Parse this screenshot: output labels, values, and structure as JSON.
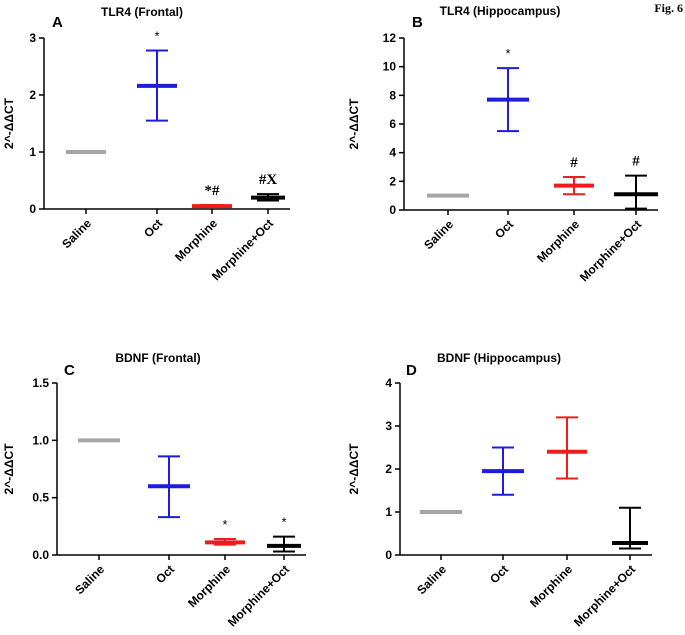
{
  "figure_label": "Fig. 6",
  "chart_data": [
    {
      "type": "scatter",
      "panel": "A",
      "title": "TLR4 (Frontal)",
      "ylabel": "2^-ΔΔCT",
      "xlabel": "",
      "ylim": [
        0,
        3
      ],
      "yticks": [
        "0",
        "1",
        "2",
        "3"
      ],
      "categories": [
        "Saline",
        "Oct",
        "Morphine",
        "Morphine+Oct"
      ],
      "colors": [
        "#a6a6a6",
        "#1c1cdc",
        "#ee1c1c",
        "#000000"
      ],
      "means": [
        1.0,
        2.16,
        0.05,
        0.2
      ],
      "upper": [
        1.0,
        2.78,
        0.07,
        0.26
      ],
      "lower": [
        1.0,
        1.55,
        0.04,
        0.15
      ],
      "annotations": [
        "",
        "*",
        "*#",
        "#X"
      ]
    },
    {
      "type": "scatter",
      "panel": "B",
      "title": "TLR4 (Hippocampus)",
      "ylabel": "2^-ΔΔCT",
      "xlabel": "",
      "ylim": [
        0,
        12
      ],
      "yticks": [
        "0",
        "2",
        "4",
        "6",
        "8",
        "10",
        "12"
      ],
      "categories": [
        "Saline",
        "Oct",
        "Morphine",
        "Morphine+Oct"
      ],
      "colors": [
        "#a6a6a6",
        "#1c1cdc",
        "#ee1c1c",
        "#000000"
      ],
      "means": [
        1.0,
        7.7,
        1.7,
        1.1
      ],
      "upper": [
        1.0,
        9.9,
        2.3,
        2.4
      ],
      "lower": [
        1.0,
        5.5,
        1.1,
        0.1
      ],
      "annotations": [
        "",
        "*",
        "#",
        "#"
      ]
    },
    {
      "type": "scatter",
      "panel": "C",
      "title": "BDNF (Frontal)",
      "ylabel": "2^-ΔΔCT",
      "xlabel": "",
      "ylim": [
        0,
        1.5
      ],
      "yticks": [
        "0.0",
        "0.5",
        "1.0",
        "1.5"
      ],
      "categories": [
        "Saline",
        "Oct",
        "Morphine",
        "Morphine+Oct"
      ],
      "colors": [
        "#a6a6a6",
        "#1c1cdc",
        "#ee1c1c",
        "#000000"
      ],
      "means": [
        1.0,
        0.6,
        0.11,
        0.08
      ],
      "upper": [
        1.0,
        0.86,
        0.14,
        0.16
      ],
      "lower": [
        1.0,
        0.33,
        0.09,
        0.03
      ],
      "annotations": [
        "",
        "",
        "*",
        "*"
      ]
    },
    {
      "type": "scatter",
      "panel": "D",
      "title": "BDNF (Hippocampus)",
      "ylabel": "2^-ΔΔCT",
      "xlabel": "",
      "ylim": [
        0,
        4
      ],
      "yticks": [
        "0",
        "1",
        "2",
        "3",
        "4"
      ],
      "categories": [
        "Saline",
        "Oct",
        "Morphine",
        "Morphine+Oct"
      ],
      "colors": [
        "#a6a6a6",
        "#1c1cdc",
        "#ee1c1c",
        "#000000"
      ],
      "means": [
        1.0,
        1.95,
        2.4,
        0.28
      ],
      "upper": [
        1.0,
        2.5,
        3.2,
        1.1
      ],
      "lower": [
        1.0,
        1.4,
        1.78,
        0.15
      ],
      "annotations": [
        "",
        "",
        "",
        ""
      ]
    }
  ]
}
